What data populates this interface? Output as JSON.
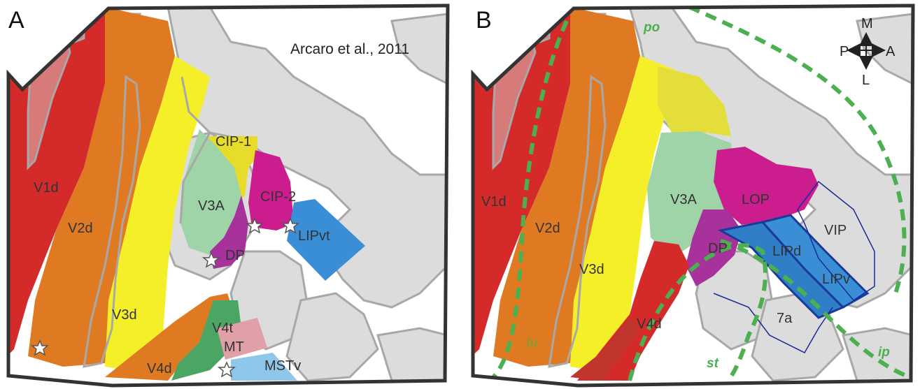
{
  "colors": {
    "sulcal_gray": "#dcdcdc",
    "gyral_outline": "#a8a8a8",
    "v1d": "#d42a2a",
    "v2d": "#e07a22",
    "v3d": "#f5ef2a",
    "v3a": "#9fd3a8",
    "cip1": "#e8dc2a",
    "cip2": "#cc1d8e",
    "dp": "#a8329c",
    "lipvt": "#3a8ed6",
    "v4t": "#4aa662",
    "mt": "#e0a0a8",
    "mstv": "#8fc7ea",
    "lip_blue": "#2f7ec6",
    "lip_border": "#1a3a9a",
    "sulcus_green": "#4caf50",
    "frame": "#333333"
  },
  "panel_a": {
    "letter": "A",
    "citation": "Arcaro et al., 2011",
    "labels": {
      "v1d": "V1d",
      "v2d": "V2d",
      "v3d": "V3d",
      "v3a": "V3A",
      "cip1": "CIP-1",
      "cip2": "CIP-2",
      "dp": "DP",
      "lipvt": "LIPvt",
      "v4t": "V4t",
      "mt": "MT",
      "mstv": "MSTv",
      "v4d": "V4d"
    }
  },
  "panel_b": {
    "letter": "B",
    "labels": {
      "v1d": "V1d",
      "v2d": "V2d",
      "v3d": "V3d",
      "v3a": "V3A",
      "lop": "LOP",
      "vip": "VIP",
      "dp": "DP",
      "lipd": "LIPd",
      "lipv": "LIPv",
      "v4d": "V4d",
      "area7a": "7a"
    },
    "sulci": {
      "po": "po",
      "lu": "lu",
      "st": "st",
      "ip": "ip"
    },
    "compass": {
      "m": "M",
      "l": "L",
      "p": "P",
      "a": "A"
    }
  }
}
